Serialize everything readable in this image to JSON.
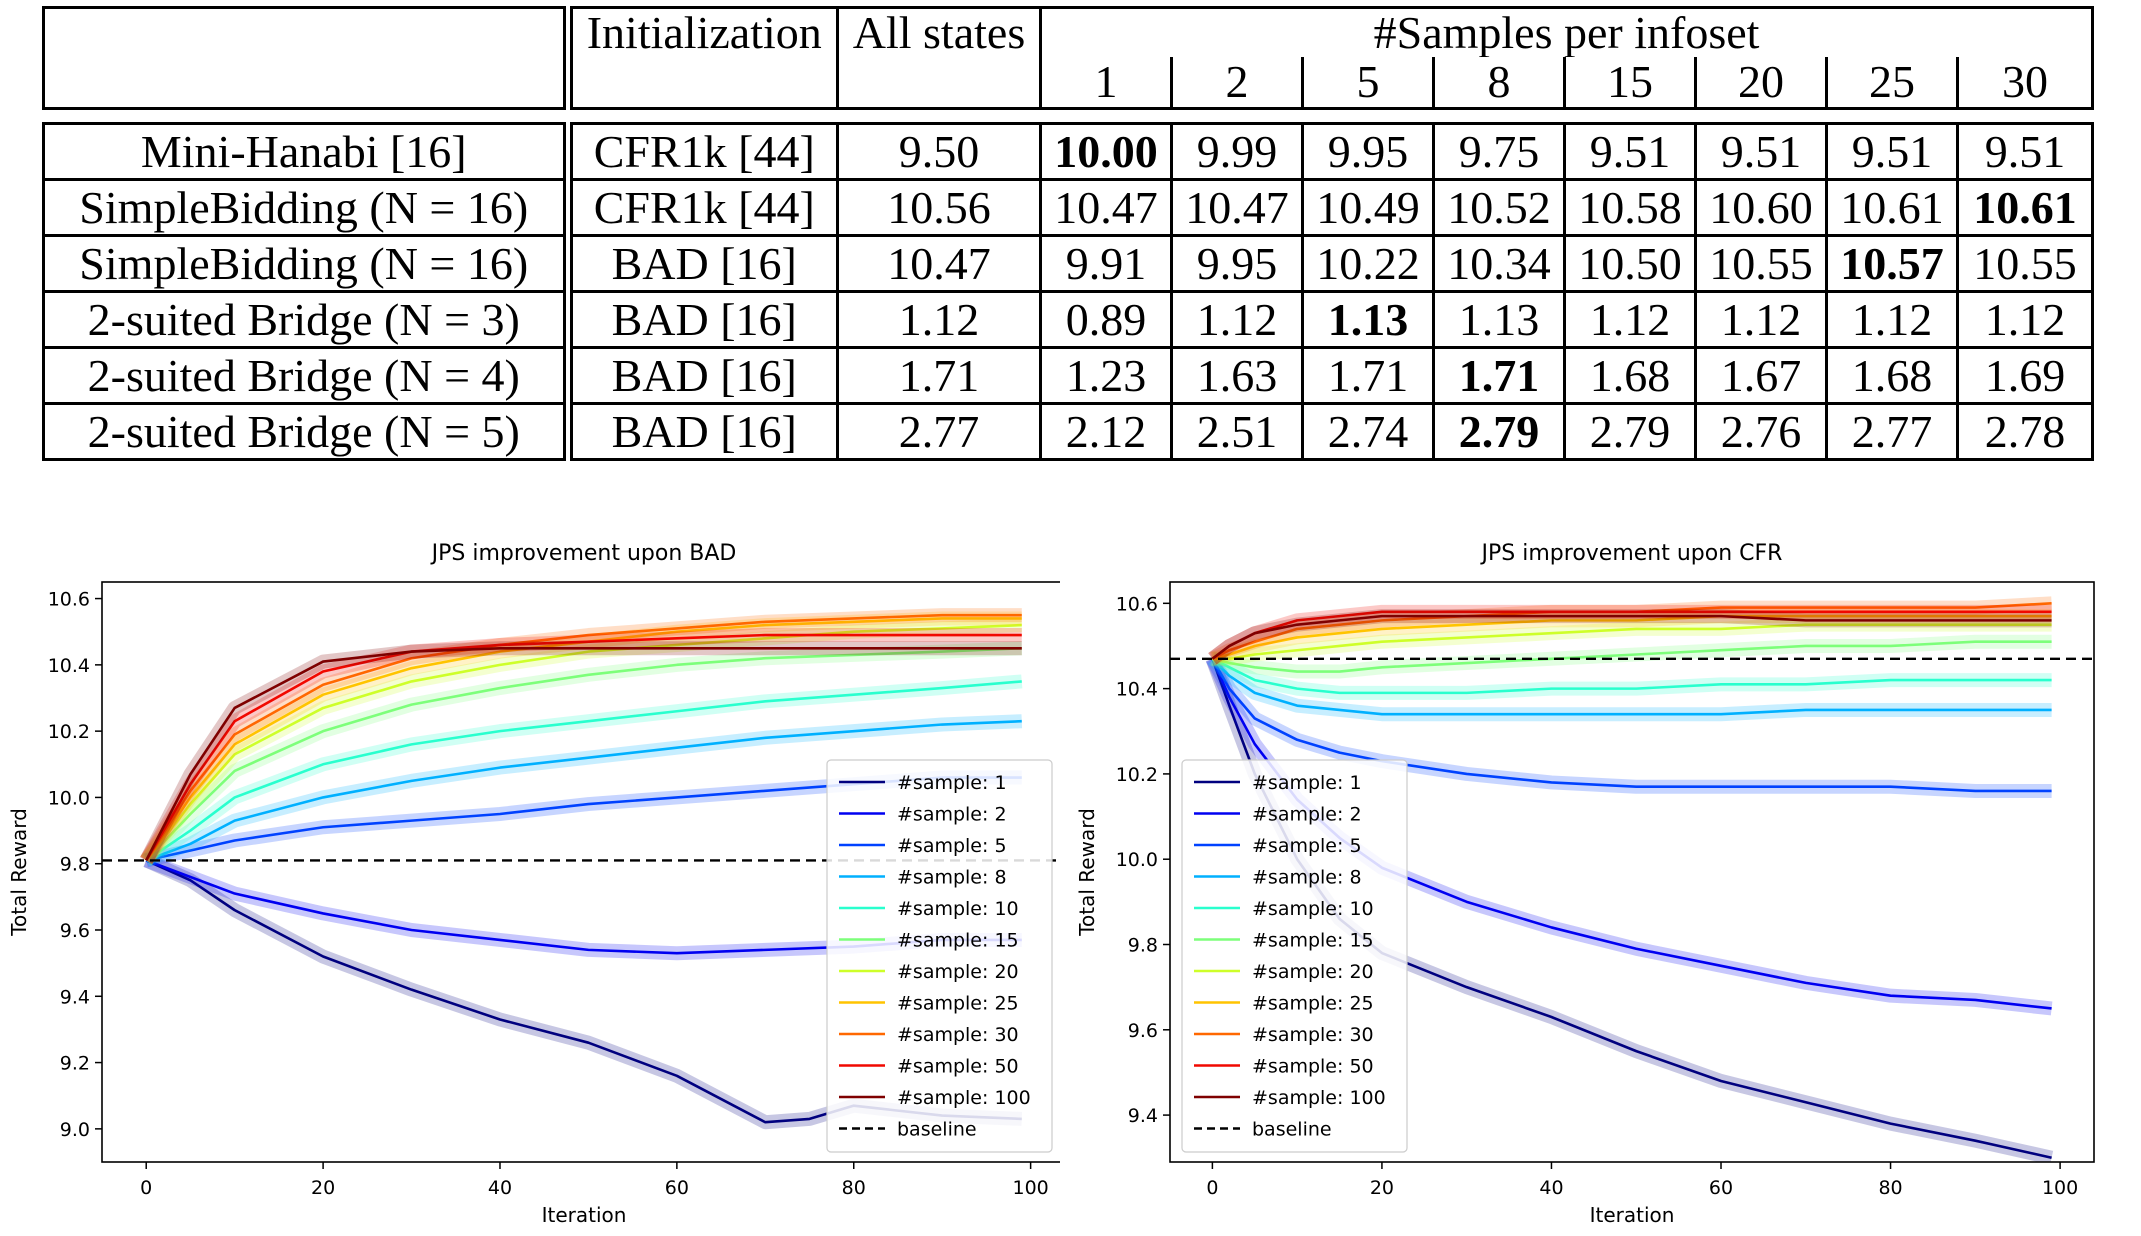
{
  "table": {
    "header": {
      "initialization": "Initialization",
      "all_states": "All states",
      "samples_group": "#Samples per infoset",
      "sample_counts": [
        "1",
        "2",
        "5",
        "8",
        "15",
        "20",
        "25",
        "30"
      ]
    },
    "rows": [
      {
        "game": "Mini-Hanabi [16]",
        "init": "CFR1k [44]",
        "all_states": "9.50",
        "values": [
          "10.00",
          "9.99",
          "9.95",
          "9.75",
          "9.51",
          "9.51",
          "9.51",
          "9.51"
        ],
        "bold_index": 0
      },
      {
        "game": "SimpleBidding (N = 16)",
        "init": "CFR1k [44]",
        "all_states": "10.56",
        "values": [
          "10.47",
          "10.47",
          "10.49",
          "10.52",
          "10.58",
          "10.60",
          "10.61",
          "10.61"
        ],
        "bold_index": 7
      },
      {
        "game": "SimpleBidding (N = 16)",
        "init": "BAD [16]",
        "all_states": "10.47",
        "values": [
          "9.91",
          "9.95",
          "10.22",
          "10.34",
          "10.50",
          "10.55",
          "10.57",
          "10.55"
        ],
        "bold_index": 6
      },
      {
        "game": "2-suited Bridge (N = 3)",
        "init": "BAD [16]",
        "all_states": "1.12",
        "values": [
          "0.89",
          "1.12",
          "1.13",
          "1.13",
          "1.12",
          "1.12",
          "1.12",
          "1.12"
        ],
        "bold_index": 2
      },
      {
        "game": "2-suited Bridge (N = 4)",
        "init": "BAD [16]",
        "all_states": "1.71",
        "values": [
          "1.23",
          "1.63",
          "1.71",
          "1.71",
          "1.68",
          "1.67",
          "1.68",
          "1.69"
        ],
        "bold_index": 3
      },
      {
        "game": "2-suited Bridge (N = 5)",
        "init": "BAD [16]",
        "all_states": "2.77",
        "values": [
          "2.12",
          "2.51",
          "2.74",
          "2.79",
          "2.79",
          "2.76",
          "2.77",
          "2.78"
        ],
        "bold_index": 3
      }
    ]
  },
  "chart_data": [
    {
      "type": "line",
      "title": "JPS improvement upon BAD",
      "xlabel": "Iteration",
      "ylabel": "Total Reward",
      "xlim": [
        -5,
        104
      ],
      "ylim": [
        8.9,
        10.65
      ],
      "xticks": [
        0,
        20,
        40,
        60,
        80,
        100
      ],
      "yticks": [
        9.0,
        9.2,
        9.4,
        9.6,
        9.8,
        10.0,
        10.2,
        10.4,
        10.6
      ],
      "legend_position": "lower-right",
      "baseline": 9.81,
      "series": [
        {
          "name": "#sample: 1",
          "color": "#00007f",
          "x": [
            0,
            5,
            10,
            20,
            30,
            40,
            50,
            60,
            70,
            75,
            80,
            90,
            99
          ],
          "y": [
            9.81,
            9.75,
            9.66,
            9.52,
            9.42,
            9.33,
            9.26,
            9.16,
            9.02,
            9.03,
            9.07,
            9.04,
            9.03
          ]
        },
        {
          "name": "#sample: 2",
          "color": "#0000f1",
          "x": [
            0,
            5,
            10,
            20,
            30,
            40,
            50,
            60,
            70,
            80,
            90,
            99
          ],
          "y": [
            9.81,
            9.76,
            9.71,
            9.65,
            9.6,
            9.57,
            9.54,
            9.53,
            9.54,
            9.55,
            9.57,
            9.57
          ]
        },
        {
          "name": "#sample: 5",
          "color": "#0042ff",
          "x": [
            0,
            5,
            10,
            20,
            30,
            40,
            50,
            60,
            70,
            80,
            90,
            99
          ],
          "y": [
            9.81,
            9.84,
            9.87,
            9.91,
            9.93,
            9.95,
            9.98,
            10.0,
            10.02,
            10.04,
            10.06,
            10.06
          ]
        },
        {
          "name": "#sample: 8",
          "color": "#00b0ff",
          "x": [
            0,
            5,
            10,
            20,
            30,
            40,
            50,
            60,
            70,
            80,
            90,
            99
          ],
          "y": [
            9.81,
            9.86,
            9.93,
            10.0,
            10.05,
            10.09,
            10.12,
            10.15,
            10.18,
            10.2,
            10.22,
            10.23
          ]
        },
        {
          "name": "#sample: 10",
          "color": "#29ffce",
          "x": [
            0,
            5,
            10,
            20,
            30,
            40,
            50,
            60,
            70,
            80,
            90,
            99
          ],
          "y": [
            9.81,
            9.9,
            10.0,
            10.1,
            10.16,
            10.2,
            10.23,
            10.26,
            10.29,
            10.31,
            10.33,
            10.35
          ]
        },
        {
          "name": "#sample: 15",
          "color": "#7dff7a",
          "x": [
            0,
            5,
            10,
            20,
            30,
            40,
            50,
            60,
            70,
            80,
            90,
            99
          ],
          "y": [
            9.81,
            9.95,
            10.08,
            10.2,
            10.28,
            10.33,
            10.37,
            10.4,
            10.42,
            10.43,
            10.44,
            10.45
          ]
        },
        {
          "name": "#sample: 20",
          "color": "#ceff29",
          "x": [
            0,
            5,
            10,
            20,
            30,
            40,
            50,
            60,
            70,
            80,
            90,
            99
          ],
          "y": [
            9.81,
            9.98,
            10.13,
            10.27,
            10.35,
            10.4,
            10.44,
            10.46,
            10.48,
            10.5,
            10.51,
            10.52
          ]
        },
        {
          "name": "#sample: 25",
          "color": "#ffc400",
          "x": [
            0,
            5,
            10,
            20,
            30,
            40,
            50,
            60,
            70,
            80,
            90,
            99
          ],
          "y": [
            9.81,
            10.0,
            10.16,
            10.31,
            10.39,
            10.44,
            10.47,
            10.5,
            10.52,
            10.53,
            10.54,
            10.54
          ]
        },
        {
          "name": "#sample: 30",
          "color": "#ff6800",
          "x": [
            0,
            5,
            10,
            20,
            30,
            40,
            50,
            60,
            70,
            80,
            90,
            99
          ],
          "y": [
            9.81,
            10.02,
            10.19,
            10.34,
            10.42,
            10.46,
            10.49,
            10.51,
            10.53,
            10.54,
            10.55,
            10.55
          ]
        },
        {
          "name": "#sample: 50",
          "color": "#f10800",
          "x": [
            0,
            5,
            10,
            20,
            30,
            40,
            50,
            60,
            70,
            80,
            90,
            99
          ],
          "y": [
            9.81,
            10.04,
            10.23,
            10.38,
            10.44,
            10.46,
            10.47,
            10.48,
            10.49,
            10.49,
            10.49,
            10.49
          ]
        },
        {
          "name": "#sample: 100",
          "color": "#7f0000",
          "x": [
            0,
            5,
            10,
            20,
            30,
            40,
            50,
            60,
            70,
            80,
            90,
            99
          ],
          "y": [
            9.81,
            10.07,
            10.27,
            10.41,
            10.44,
            10.45,
            10.45,
            10.45,
            10.45,
            10.45,
            10.45,
            10.45
          ]
        },
        {
          "name": "baseline",
          "color": "#000000",
          "dashed": true,
          "x": [
            -5,
            104
          ],
          "y": [
            9.81,
            9.81
          ]
        }
      ]
    },
    {
      "type": "line",
      "title": "JPS improvement upon CFR",
      "xlabel": "Iteration",
      "ylabel": "Total Reward",
      "xlim": [
        -5,
        104
      ],
      "ylim": [
        9.29,
        10.65
      ],
      "xticks": [
        0,
        20,
        40,
        60,
        80,
        100
      ],
      "yticks": [
        9.4,
        9.6,
        9.8,
        10.0,
        10.2,
        10.4,
        10.6
      ],
      "legend_position": "lower-left",
      "baseline": 10.47,
      "series": [
        {
          "name": "#sample: 1",
          "color": "#00007f",
          "x": [
            0,
            2,
            5,
            10,
            15,
            20,
            30,
            40,
            50,
            60,
            70,
            80,
            90,
            99
          ],
          "y": [
            10.47,
            10.36,
            10.2,
            10.0,
            9.86,
            9.78,
            9.7,
            9.63,
            9.55,
            9.48,
            9.43,
            9.38,
            9.34,
            9.3
          ]
        },
        {
          "name": "#sample: 2",
          "color": "#0000f1",
          "x": [
            0,
            2,
            5,
            10,
            15,
            20,
            30,
            40,
            50,
            60,
            70,
            80,
            90,
            99
          ],
          "y": [
            10.47,
            10.38,
            10.27,
            10.14,
            10.05,
            9.98,
            9.9,
            9.84,
            9.79,
            9.75,
            9.71,
            9.68,
            9.67,
            9.65
          ]
        },
        {
          "name": "#sample: 5",
          "color": "#0042ff",
          "x": [
            0,
            2,
            5,
            10,
            15,
            20,
            30,
            40,
            50,
            60,
            70,
            80,
            90,
            99
          ],
          "y": [
            10.47,
            10.4,
            10.33,
            10.28,
            10.25,
            10.23,
            10.2,
            10.18,
            10.17,
            10.17,
            10.17,
            10.17,
            10.16,
            10.16
          ]
        },
        {
          "name": "#sample: 8",
          "color": "#00b0ff",
          "x": [
            0,
            2,
            5,
            10,
            15,
            20,
            30,
            40,
            50,
            60,
            70,
            80,
            90,
            99
          ],
          "y": [
            10.47,
            10.43,
            10.39,
            10.36,
            10.35,
            10.34,
            10.34,
            10.34,
            10.34,
            10.34,
            10.35,
            10.35,
            10.35,
            10.35
          ]
        },
        {
          "name": "#sample: 10",
          "color": "#29ffce",
          "x": [
            0,
            2,
            5,
            10,
            15,
            20,
            30,
            40,
            50,
            60,
            70,
            80,
            90,
            99
          ],
          "y": [
            10.47,
            10.45,
            10.42,
            10.4,
            10.39,
            10.39,
            10.39,
            10.4,
            10.4,
            10.41,
            10.41,
            10.42,
            10.42,
            10.42
          ]
        },
        {
          "name": "#sample: 15",
          "color": "#7dff7a",
          "x": [
            0,
            2,
            5,
            10,
            15,
            20,
            30,
            40,
            50,
            60,
            70,
            80,
            90,
            99
          ],
          "y": [
            10.47,
            10.46,
            10.45,
            10.44,
            10.44,
            10.45,
            10.46,
            10.47,
            10.48,
            10.49,
            10.5,
            10.5,
            10.51,
            10.51
          ]
        },
        {
          "name": "#sample: 20",
          "color": "#ceff29",
          "x": [
            0,
            2,
            5,
            10,
            15,
            20,
            30,
            40,
            50,
            60,
            70,
            80,
            90,
            99
          ],
          "y": [
            10.47,
            10.47,
            10.48,
            10.49,
            10.5,
            10.51,
            10.52,
            10.53,
            10.54,
            10.54,
            10.55,
            10.55,
            10.55,
            10.55
          ]
        },
        {
          "name": "#sample: 25",
          "color": "#ffc400",
          "x": [
            0,
            2,
            5,
            10,
            15,
            20,
            30,
            40,
            50,
            60,
            70,
            80,
            90,
            99
          ],
          "y": [
            10.47,
            10.48,
            10.5,
            10.52,
            10.53,
            10.54,
            10.55,
            10.56,
            10.56,
            10.57,
            10.57,
            10.57,
            10.57,
            10.57
          ]
        },
        {
          "name": "#sample: 30",
          "color": "#ff6800",
          "x": [
            0,
            2,
            5,
            10,
            15,
            20,
            30,
            40,
            50,
            60,
            70,
            80,
            90,
            99
          ],
          "y": [
            10.47,
            10.49,
            10.51,
            10.54,
            10.55,
            10.56,
            10.57,
            10.58,
            10.58,
            10.59,
            10.59,
            10.59,
            10.59,
            10.6
          ]
        },
        {
          "name": "#sample: 50",
          "color": "#f10800",
          "x": [
            0,
            2,
            5,
            10,
            15,
            20,
            30,
            40,
            50,
            60,
            70,
            80,
            90,
            99
          ],
          "y": [
            10.47,
            10.5,
            10.53,
            10.56,
            10.57,
            10.58,
            10.58,
            10.58,
            10.58,
            10.58,
            10.58,
            10.58,
            10.58,
            10.58
          ]
        },
        {
          "name": "#sample: 100",
          "color": "#7f0000",
          "x": [
            0,
            2,
            5,
            10,
            15,
            20,
            30,
            40,
            50,
            60,
            70,
            80,
            90,
            99
          ],
          "y": [
            10.47,
            10.5,
            10.53,
            10.55,
            10.56,
            10.57,
            10.57,
            10.57,
            10.57,
            10.57,
            10.56,
            10.56,
            10.56,
            10.56
          ]
        },
        {
          "name": "baseline",
          "color": "#000000",
          "dashed": true,
          "x": [
            -5,
            104
          ],
          "y": [
            10.47,
            10.47
          ]
        }
      ]
    }
  ]
}
